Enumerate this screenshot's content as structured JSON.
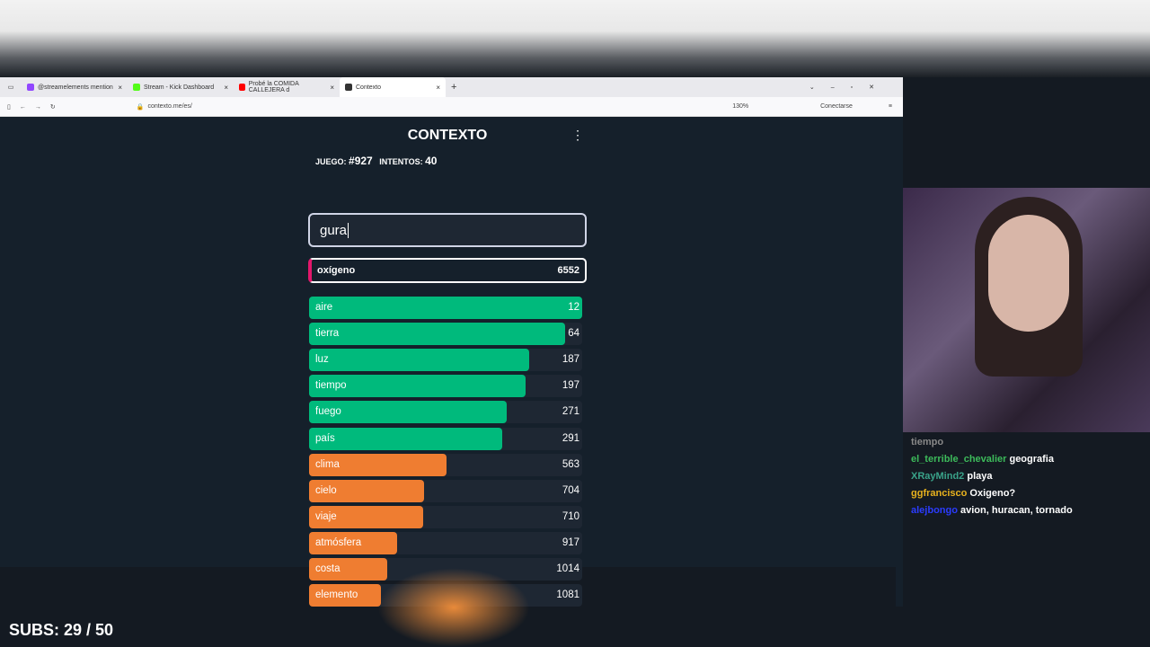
{
  "browser": {
    "tabs": [
      {
        "label": "@streamelements mention",
        "color": "#9146ff"
      },
      {
        "label": "Stream - Kick Dashboard",
        "color": "#53fc18"
      },
      {
        "label": "Probé la COMIDA CALLEJERA d",
        "color": "#ff0000"
      },
      {
        "label": "Contexto",
        "color": "#333333",
        "active": true
      }
    ],
    "url": "contexto.me/es/",
    "zoom": "130%",
    "signin": "Conectarse"
  },
  "game": {
    "title": "CONTEXTO",
    "game_label": "JUEGO:",
    "game_number": "#927",
    "attempts_label": "INTENTOS:",
    "attempts": "40",
    "input_value": "gura",
    "current": {
      "word": "oxígeno",
      "rank": "6552"
    },
    "guesses": [
      {
        "word": "aire",
        "rank": "12"
      },
      {
        "word": "tierra",
        "rank": "64"
      },
      {
        "word": "luz",
        "rank": "187"
      },
      {
        "word": "tiempo",
        "rank": "197"
      },
      {
        "word": "fuego",
        "rank": "271"
      },
      {
        "word": "país",
        "rank": "291"
      },
      {
        "word": "clima",
        "rank": "563"
      },
      {
        "word": "cielo",
        "rank": "704"
      },
      {
        "word": "viaje",
        "rank": "710"
      },
      {
        "word": "atmósfera",
        "rank": "917"
      },
      {
        "word": "costa",
        "rank": "1014"
      },
      {
        "word": "elemento",
        "rank": "1081"
      }
    ],
    "colors": {
      "green": "#00ba7c",
      "orange": "#ef7d31"
    }
  },
  "chat": [
    {
      "user": "tiempo",
      "text": "",
      "color": "#888888"
    },
    {
      "user": "el_terrible_chevalier",
      "text": "geografia",
      "color": "#3dbb5b"
    },
    {
      "user": "XRayMind2",
      "text": "playa",
      "color": "#3aa38a"
    },
    {
      "user": "ggfrancisco",
      "text": "Oxigeno?",
      "color": "#e8b21e"
    },
    {
      "user": "alejbongo",
      "text": "avion, huracan, tornado",
      "color": "#2b3cff"
    }
  ],
  "overlay": {
    "subs": "SUBS: 29 / 50"
  }
}
